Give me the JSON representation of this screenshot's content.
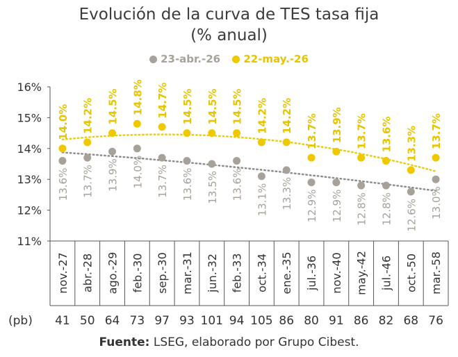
{
  "chart_data": {
    "type": "scatter",
    "title": "Evolución de la curva de TES tasa fija",
    "subtitle": "(% anual)",
    "categories": [
      "nov.-27",
      "abr.-28",
      "ago.-29",
      "feb.-30",
      "sep.-30",
      "mar.-31",
      "jun.-32",
      "feb.-33",
      "oct.-34",
      "ene.-35",
      "jul.-36",
      "nov.-40",
      "may.-42",
      "jul.-46",
      "oct.-50",
      "mar.-58"
    ],
    "series": [
      {
        "name": "23-abr.-26",
        "color": "#a6a29a",
        "trend_color": "#8c8c8c",
        "values": [
          13.6,
          13.7,
          13.9,
          14.0,
          13.7,
          13.6,
          13.5,
          13.6,
          13.1,
          13.3,
          12.9,
          12.9,
          12.8,
          12.8,
          12.6,
          13.0
        ],
        "labels": [
          "13.6%",
          "13.7%",
          "13.9%",
          "14.0%",
          "13.7%",
          "13.6%",
          "13.5%",
          "13.6%",
          "13.1%",
          "13.3%",
          "12.9%",
          "12.9%",
          "12.8%",
          "12.8%",
          "12.6%",
          "13.0%"
        ]
      },
      {
        "name": "22-may.-26",
        "color": "#f0c800",
        "trend_color": "#e8cc10",
        "values": [
          14.0,
          14.2,
          14.5,
          14.8,
          14.7,
          14.5,
          14.5,
          14.5,
          14.2,
          14.2,
          13.7,
          13.9,
          13.7,
          13.6,
          13.3,
          13.7
        ],
        "labels": [
          "14.0%",
          "14.2%",
          "14.5%",
          "14.8%",
          "14.7%",
          "14.5%",
          "14.5%",
          "14.5%",
          "14.2%",
          "14.2%",
          "13.7%",
          "13.9%",
          "13.7%",
          "13.6%",
          "13.3%",
          "13.7%"
        ]
      }
    ],
    "ylim": [
      11,
      16
    ],
    "yticks": [
      "11%",
      "12%",
      "13%",
      "14%",
      "15%",
      "16%"
    ],
    "grid": false,
    "legend_position": "top",
    "pb_label": "(pb)",
    "pb_values": [
      "41",
      "50",
      "64",
      "73",
      "97",
      "93",
      "101",
      "94",
      "105",
      "86",
      "80",
      "91",
      "86",
      "82",
      "68",
      "76"
    ]
  },
  "source": {
    "label": "Fuente:",
    "text": " LSEG, elaborado por Grupo Cibest."
  }
}
